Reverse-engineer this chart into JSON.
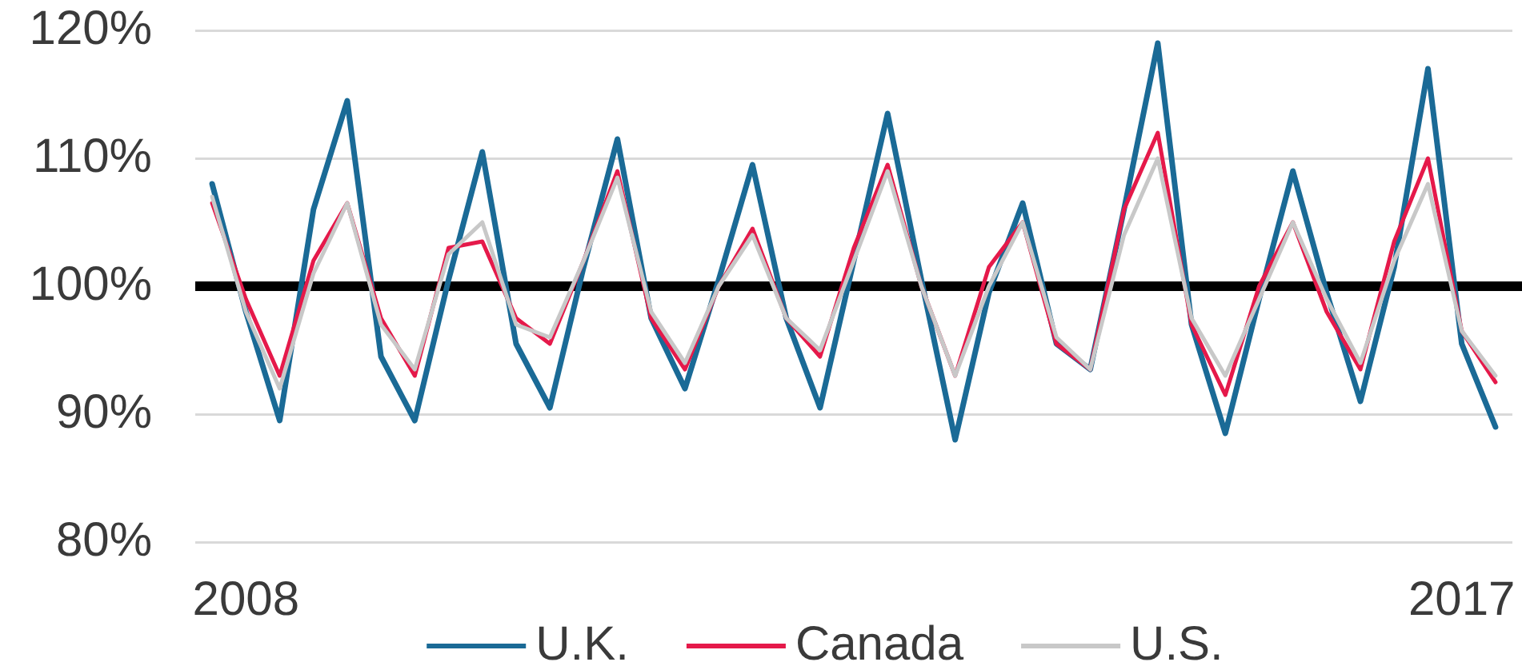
{
  "chart_data": {
    "type": "line",
    "categories": [
      null,
      "2008",
      null,
      null,
      null,
      null,
      null,
      null,
      null,
      null,
      null,
      null,
      null,
      null,
      null,
      null,
      null,
      null,
      null,
      null,
      null,
      null,
      null,
      null,
      null,
      null,
      null,
      null,
      null,
      null,
      null,
      null,
      null,
      null,
      null,
      null,
      null,
      "2017",
      null
    ],
    "series": [
      {
        "name": "U.K.",
        "color": "#1a6a96",
        "values": [
          108,
          98,
          89.5,
          106,
          114.5,
          94.5,
          89.5,
          100.5,
          110.5,
          95.5,
          90.5,
          101.5,
          111.5,
          97.5,
          92,
          100.5,
          109.5,
          97.5,
          90.5,
          102,
          113.5,
          100.5,
          88,
          99.5,
          106.5,
          95.5,
          93.5,
          106,
          119,
          97,
          88.5,
          99,
          109,
          99.5,
          91,
          101.5,
          117,
          95.5,
          89
        ]
      },
      {
        "name": "Canada",
        "color": "#e5194a",
        "values": [
          106.5,
          99,
          93,
          102,
          106.5,
          97.5,
          93,
          103,
          103.5,
          97.5,
          95.5,
          102,
          109,
          97.5,
          93.5,
          100,
          104.5,
          97.5,
          94.5,
          103,
          109.5,
          100,
          93,
          101.5,
          105,
          95.5,
          93.5,
          106,
          112,
          97,
          91.5,
          100,
          105,
          98,
          93.5,
          103.5,
          110,
          96.5,
          92.5
        ]
      },
      {
        "name": "U.S.",
        "color": "#c8c8c8",
        "values": [
          107,
          98,
          92,
          101,
          106.5,
          97,
          93.5,
          102.5,
          105,
          97,
          96,
          102,
          108.5,
          98,
          94,
          100,
          104,
          97.5,
          95,
          102,
          109,
          100,
          93,
          100,
          105,
          96,
          93.5,
          104,
          110,
          97.5,
          93,
          99,
          105,
          99,
          94,
          102,
          108,
          96.5,
          93
        ]
      }
    ],
    "ylim": [
      80,
      120
    ],
    "yticks": [
      {
        "value": 80,
        "label": "80%"
      },
      {
        "value": 90,
        "label": "90%"
      },
      {
        "value": 100,
        "label": "100%"
      },
      {
        "value": 110,
        "label": "110%"
      },
      {
        "value": 120,
        "label": "120%"
      }
    ],
    "ref_lines": [
      {
        "axis": "y",
        "value": 100,
        "color": "#000000"
      }
    ],
    "grid": "y",
    "legend": "bottom",
    "line_style": "solid"
  }
}
